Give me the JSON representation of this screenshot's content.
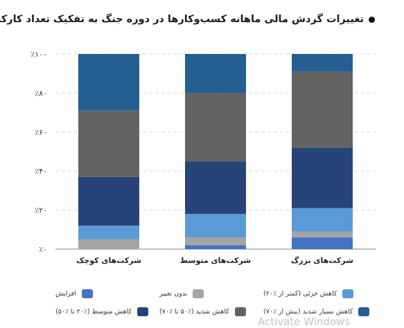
{
  "title": "تغییرات گردش مالی ماهانه کسب‌وکارها در دوره جنگ به تفکیک تعداد کارکنان",
  "watermark": "Activate Windows",
  "colors": {
    "increase": "#4472c4",
    "no_change": "#a5a5a5",
    "slight_decrease": "#5b9bd5",
    "moderate_decrease": "#264478",
    "severe_decrease": "#636363",
    "very_severe_decrease": "#255e91",
    "grid": "#d9d9d9",
    "axis": "#7f7f7f",
    "text": "#333333"
  },
  "chart_data": {
    "type": "bar",
    "stacked": true,
    "categories": [
      "شرکت‌های بزرگ",
      "شرکت‌های متوسط",
      "شرکت‌های کوچک"
    ],
    "ylim": [
      0,
      100
    ],
    "yticks": [
      "٪۰",
      "٪۲۰",
      "٪۴۰",
      "٪۶۰",
      "٪۸۰",
      "٪۱۰۰"
    ],
    "grid": true,
    "legend_position": "bottom",
    "series": [
      {
        "name": "افزایش",
        "color": "#4472c4",
        "values": [
          6,
          2,
          0
        ]
      },
      {
        "name": "بدون تغییر",
        "color": "#a5a5a5",
        "values": [
          3,
          4,
          5
        ]
      },
      {
        "name": "کاهش جزئی (کمتر از ٪۲۰)",
        "color": "#5b9bd5",
        "values": [
          12,
          12,
          7
        ]
      },
      {
        "name": "کاهش متوسط (٪۲۰ تا ٪۵۰)",
        "color": "#264478",
        "values": [
          31,
          27,
          25
        ]
      },
      {
        "name": "کاهش شدید (٪۵۰ تا ٪۷۰)",
        "color": "#636363",
        "values": [
          39,
          35,
          34
        ]
      },
      {
        "name": "کاهش بسیار شدید (بیش از ٪۷۰)",
        "color": "#255e91",
        "values": [
          9,
          20,
          29
        ]
      }
    ]
  },
  "legend": {
    "row1": [
      {
        "label": "کاهش جزئی (کمتر از ٪۲۰)",
        "color": "#5b9bd5"
      },
      {
        "label": "بدون تغییر",
        "color": "#a5a5a5"
      },
      {
        "label": "افزایش",
        "color": "#4472c4"
      }
    ],
    "row2": [
      {
        "label": "کاهش بسیار شدید (بیش از ٪۷۰)",
        "color": "#255e91"
      },
      {
        "label": "کاهش شدید (٪۵۰ تا ٪۷۰)",
        "color": "#636363"
      },
      {
        "label": "کاهش متوسط (٪۲۰ تا ٪۵۰)",
        "color": "#264478"
      }
    ]
  }
}
